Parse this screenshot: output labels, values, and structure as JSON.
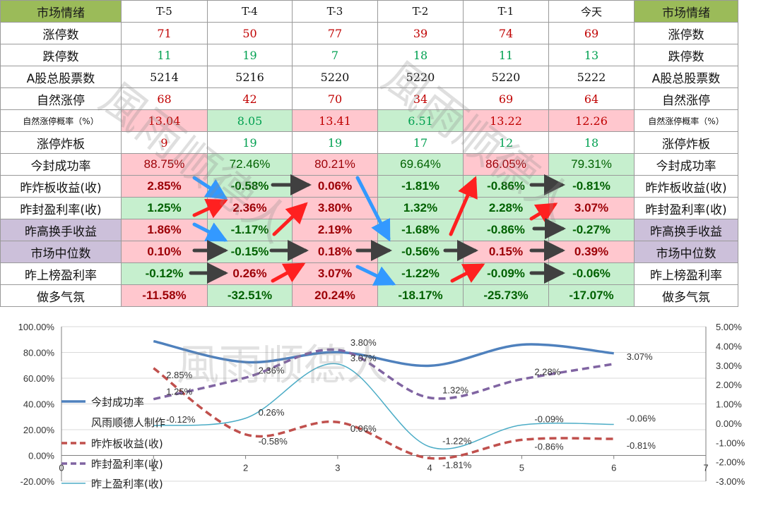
{
  "table": {
    "header": [
      "市场情绪",
      "T-5",
      "T-4",
      "T-3",
      "T-2",
      "T-1",
      "今天",
      "市场情绪"
    ],
    "rows": [
      {
        "label": "涨停数",
        "values": [
          "71",
          "50",
          "77",
          "39",
          "74",
          "69"
        ]
      },
      {
        "label": "跌停数",
        "values": [
          "11",
          "19",
          "7",
          "18",
          "11",
          "13"
        ]
      },
      {
        "label": "A股总股票数",
        "values": [
          "5214",
          "5216",
          "5220",
          "5220",
          "5220",
          "5222"
        ]
      },
      {
        "label": "自然涨停",
        "values": [
          "68",
          "42",
          "70",
          "34",
          "69",
          "64"
        ]
      },
      {
        "label": "自然涨停概率（%）",
        "values": [
          "13.04",
          "8.05",
          "13.41",
          "6.51",
          "13.22",
          "12.26"
        ]
      },
      {
        "label": "涨停炸板",
        "values": [
          "9",
          "19",
          "19",
          "17",
          "12",
          "18"
        ]
      },
      {
        "label": "今封成功率",
        "values": [
          "88.75%",
          "72.46%",
          "80.21%",
          "69.64%",
          "86.05%",
          "79.31%"
        ]
      },
      {
        "label": "昨炸板收益(收)",
        "values": [
          "2.85%",
          "-0.58%",
          "0.06%",
          "-1.81%",
          "-0.86%",
          "-0.81%"
        ]
      },
      {
        "label": "昨封盈利率(收)",
        "values": [
          "1.25%",
          "2.36%",
          "3.80%",
          "1.32%",
          "2.28%",
          "3.07%"
        ]
      },
      {
        "label": "昨高换手收益",
        "values": [
          "1.86%",
          "-1.17%",
          "2.19%",
          "-1.68%",
          "-0.86%",
          "-0.27%"
        ]
      },
      {
        "label": "市场中位数",
        "values": [
          "0.10%",
          "-0.15%",
          "0.18%",
          "-0.56%",
          "0.15%",
          "0.39%"
        ]
      },
      {
        "label": "昨上榜盈利率",
        "values": [
          "-0.12%",
          "0.26%",
          "3.07%",
          "-1.22%",
          "-0.09%",
          "-0.06%"
        ]
      },
      {
        "label": "做多气氛",
        "values": [
          "-11.58%",
          "-32.51%",
          "20.24%",
          "-18.17%",
          "-25.73%",
          "-17.07%"
        ]
      }
    ]
  },
  "watermark": "風雨顺德人",
  "colors": {
    "header_green": "#9bbb59",
    "pink": "#ffc7ce",
    "light_green": "#c6efce",
    "purple": "#ccc0da",
    "arrow_dark": "#404040",
    "arrow_blue": "#3399ff",
    "arrow_red": "#ff2020"
  },
  "chart_data": {
    "type": "line",
    "x": [
      1,
      2,
      3,
      4,
      5,
      6
    ],
    "xlim": [
      0,
      7
    ],
    "x_ticks": [
      "0",
      "1",
      "2",
      "3",
      "4",
      "5",
      "6",
      "7"
    ],
    "ylim_left": [
      -20,
      100
    ],
    "y_ticks_left": [
      "100.00%",
      "80.00%",
      "60.00%",
      "40.00%",
      "20.00%",
      "0.00%",
      "-20.00%"
    ],
    "ylim_right": [
      -3,
      5
    ],
    "y_ticks_right": [
      "5.00%",
      "4.00%",
      "3.00%",
      "2.00%",
      "1.00%",
      "0.00%",
      "-1.00%",
      "-2.00%",
      "-3.00%"
    ],
    "series": [
      {
        "name": "今封成功率",
        "axis": "left",
        "values": [
          88.75,
          72.46,
          80.21,
          69.64,
          86.05,
          79.31
        ],
        "color": "#4f81bd",
        "style": "solid"
      },
      {
        "name": "昨炸板收益(收)",
        "axis": "right",
        "values": [
          2.85,
          -0.58,
          0.06,
          -1.81,
          -0.86,
          -0.81
        ],
        "color": "#c0504d",
        "style": "dashed",
        "labels": [
          "2.85%",
          "-0.58%",
          "0.06%",
          "-1.81%",
          "-0.86%",
          "-0.81%"
        ]
      },
      {
        "name": "昨封盈利率(收)",
        "axis": "right",
        "values": [
          1.25,
          2.36,
          3.8,
          1.32,
          2.28,
          3.07
        ],
        "color": "#8064a2",
        "style": "dashed",
        "labels": [
          "1.25%",
          "2.36%",
          "3.80%",
          "1.32%",
          "2.28%",
          "3.07%"
        ]
      },
      {
        "name": "昨上盈利率(收)",
        "axis": "right",
        "values": [
          -0.12,
          0.26,
          3.07,
          -1.22,
          -0.09,
          -0.06
        ],
        "color": "#4bacc6",
        "style": "solid",
        "labels": [
          "-0.12%",
          "0.26%",
          "3.07%",
          "-1.22%",
          "-0.09%",
          "-0.06%"
        ]
      }
    ],
    "annotation": "风雨顺德人制作",
    "legend_position": "left",
    "grid": true
  }
}
